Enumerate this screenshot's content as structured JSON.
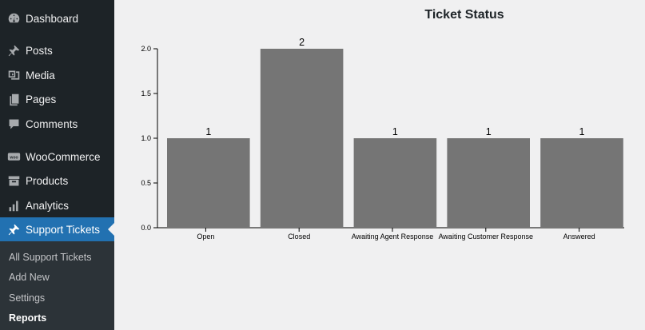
{
  "sidebar": {
    "items": [
      {
        "label": "Dashboard",
        "icon": "dashboard-icon"
      },
      {
        "label": "Posts",
        "icon": "pin-icon"
      },
      {
        "label": "Media",
        "icon": "media-icon"
      },
      {
        "label": "Pages",
        "icon": "pages-icon"
      },
      {
        "label": "Comments",
        "icon": "comment-icon"
      },
      {
        "label": "WooCommerce",
        "icon": "woocommerce-icon"
      },
      {
        "label": "Products",
        "icon": "archive-icon"
      },
      {
        "label": "Analytics",
        "icon": "bar-chart-icon"
      },
      {
        "label": "Support Tickets",
        "icon": "pin-icon",
        "active": true
      }
    ],
    "submenu": [
      {
        "label": "All Support Tickets"
      },
      {
        "label": "Add New"
      },
      {
        "label": "Settings"
      },
      {
        "label": "Reports",
        "current": true
      }
    ],
    "woo_badge": "woo"
  },
  "colors": {
    "sidebar_bg": "#1d2327",
    "active_item": "#2271b1",
    "bar": "#757575"
  },
  "chart_data": {
    "type": "bar",
    "title": "Ticket Status",
    "categories": [
      "Open",
      "Closed",
      "Awaiting Agent Response",
      "Awaiting Customer Response",
      "Answered"
    ],
    "values": [
      1,
      2,
      1,
      1,
      1
    ],
    "data_labels": [
      "1",
      "2",
      "1",
      "1",
      "1"
    ],
    "ylim": [
      0,
      2
    ],
    "yticks": [
      "0.0",
      "0.5",
      "1.0",
      "1.5",
      "2.0"
    ],
    "xlabel": "",
    "ylabel": "",
    "grid": false
  }
}
